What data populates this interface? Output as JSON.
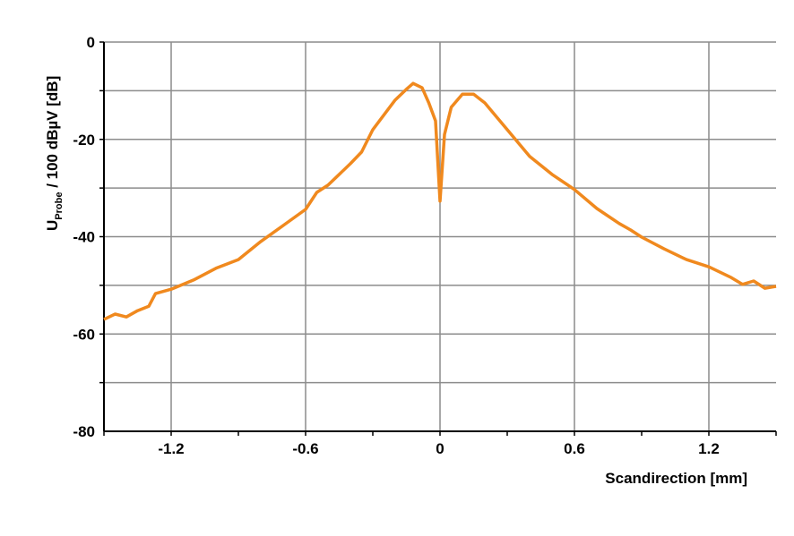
{
  "chart_data": {
    "type": "line",
    "title": "",
    "xlabel": "Scandirection [mm]",
    "ylabel_main": "U",
    "ylabel_sub": "Probe",
    "ylabel_rest": " / 100 dBµV [dB]",
    "xlim": [
      -1.5,
      1.5
    ],
    "ylim": [
      -80,
      0
    ],
    "xticks": [
      -1.2,
      -0.6,
      0,
      0.6,
      1.2
    ],
    "xtick_labels": [
      "-1.2",
      "-0.6",
      "0",
      "0.6",
      "1.2"
    ],
    "yticks": [
      0,
      -20,
      -40,
      -60,
      -80
    ],
    "ytick_labels": [
      "0",
      "-20",
      "-40",
      "-60",
      "-80"
    ],
    "grid": true,
    "line_color": "#f0891e",
    "series": [
      {
        "x": [
          -1.5,
          -1.45,
          -1.4,
          -1.35,
          -1.3,
          -1.27,
          -1.2,
          -1.1,
          -1.0,
          -0.9,
          -0.8,
          -0.7,
          -0.6,
          -0.55,
          -0.5,
          -0.4,
          -0.35,
          -0.3,
          -0.2,
          -0.15,
          -0.12,
          -0.08,
          -0.05,
          -0.02,
          0,
          0.02,
          0.05,
          0.1,
          0.15,
          0.2,
          0.3,
          0.4,
          0.5,
          0.6,
          0.7,
          0.8,
          0.85,
          0.9,
          1.0,
          1.1,
          1.2,
          1.3,
          1.35,
          1.4,
          1.45,
          1.5
        ],
        "y": [
          -57,
          -55.9,
          -56.5,
          -55.2,
          -54.3,
          -51.7,
          -50.8,
          -48.9,
          -46.5,
          -44.7,
          -41,
          -37.7,
          -34.4,
          -30.9,
          -29.4,
          -25,
          -22.6,
          -18,
          -11.9,
          -9.7,
          -8.5,
          -9.4,
          -12.5,
          -16.2,
          -32.7,
          -19,
          -13.4,
          -10.7,
          -10.7,
          -12.5,
          -18,
          -23.5,
          -27.2,
          -30.3,
          -34.2,
          -37.3,
          -38.6,
          -40.1,
          -42.5,
          -44.7,
          -46.2,
          -48.4,
          -49.8,
          -49.1,
          -50.6,
          -50.2
        ]
      }
    ]
  }
}
